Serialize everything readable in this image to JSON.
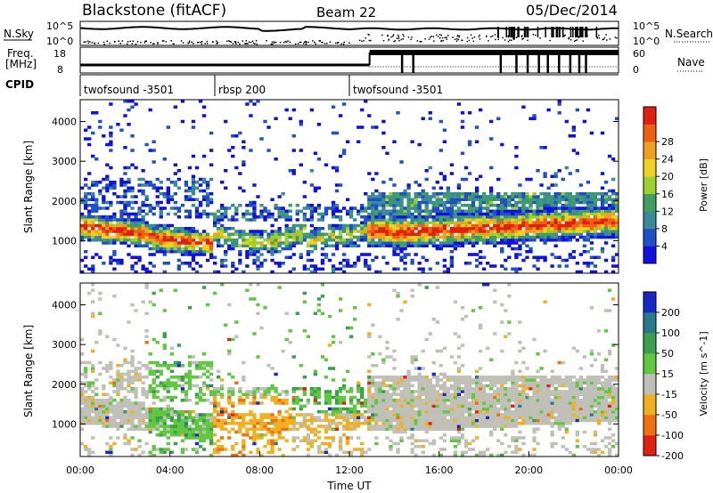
{
  "header": {
    "station": "Blackstone (fitACF)",
    "beam": "Beam 22",
    "date": "05/Dec/2014"
  },
  "left_labels": {
    "nsky": "N.Sky",
    "freq_line1": "Freq.",
    "freq_line2": "[MHz]",
    "cpid": "CPID"
  },
  "right_labels": {
    "nsearch": "N.Search",
    "nave": "Nave"
  },
  "noise_axis": {
    "left_top": "10^5",
    "left_bottom": "10^0",
    "right_top": "10^5",
    "right_bottom": "10^0"
  },
  "freq_axis": {
    "left_top": "18",
    "left_bottom": "8",
    "right_top": "60",
    "right_bottom": "0"
  },
  "cpid_segments": [
    {
      "label": "twofsound -3501",
      "start_hour": 0,
      "end_hour": 6
    },
    {
      "label": "rbsp 200",
      "start_hour": 6,
      "end_hour": 12
    },
    {
      "label": "twofsound -3501",
      "start_hour": 12,
      "end_hour": 24
    }
  ],
  "chart_data": [
    {
      "type": "heatmap",
      "quantity": "power",
      "ylabel": "Slant Range [km]",
      "y_ticks": [
        "1000",
        "2000",
        "3000",
        "4000"
      ],
      "ylim": [
        180,
        4550
      ],
      "xlim": [
        0,
        24
      ],
      "colorbar": {
        "label": "Power [dB]",
        "ticks": [
          "4",
          "8",
          "12",
          "16",
          "20",
          "24",
          "28"
        ],
        "colors": [
          "#1010e0",
          "#2050c8",
          "#3a8a9a",
          "#40a060",
          "#9ad030",
          "#f0d020",
          "#f0a020",
          "#f06010",
          "#e02010"
        ]
      }
    },
    {
      "type": "heatmap",
      "quantity": "velocity",
      "ylabel": "Slant Range [km]",
      "y_ticks": [
        "1000",
        "2000",
        "3000",
        "4000"
      ],
      "ylim": [
        180,
        4550
      ],
      "xlim": [
        0,
        24
      ],
      "xlabel": "Time UT",
      "x_ticks": [
        "00:00",
        "04:00",
        "08:00",
        "12:00",
        "16:00",
        "20:00",
        "00:00"
      ],
      "colorbar": {
        "label": "Velocity [m s^-1]",
        "ticks": [
          "200",
          "100",
          "50",
          "15",
          "-15",
          "-50",
          "-100",
          "-200"
        ],
        "colors": [
          "#1828c8",
          "#2a7a8a",
          "#3aa050",
          "#60c840",
          "#c0c0b8",
          "#f0b020",
          "#f07010",
          "#e02010"
        ]
      }
    }
  ]
}
